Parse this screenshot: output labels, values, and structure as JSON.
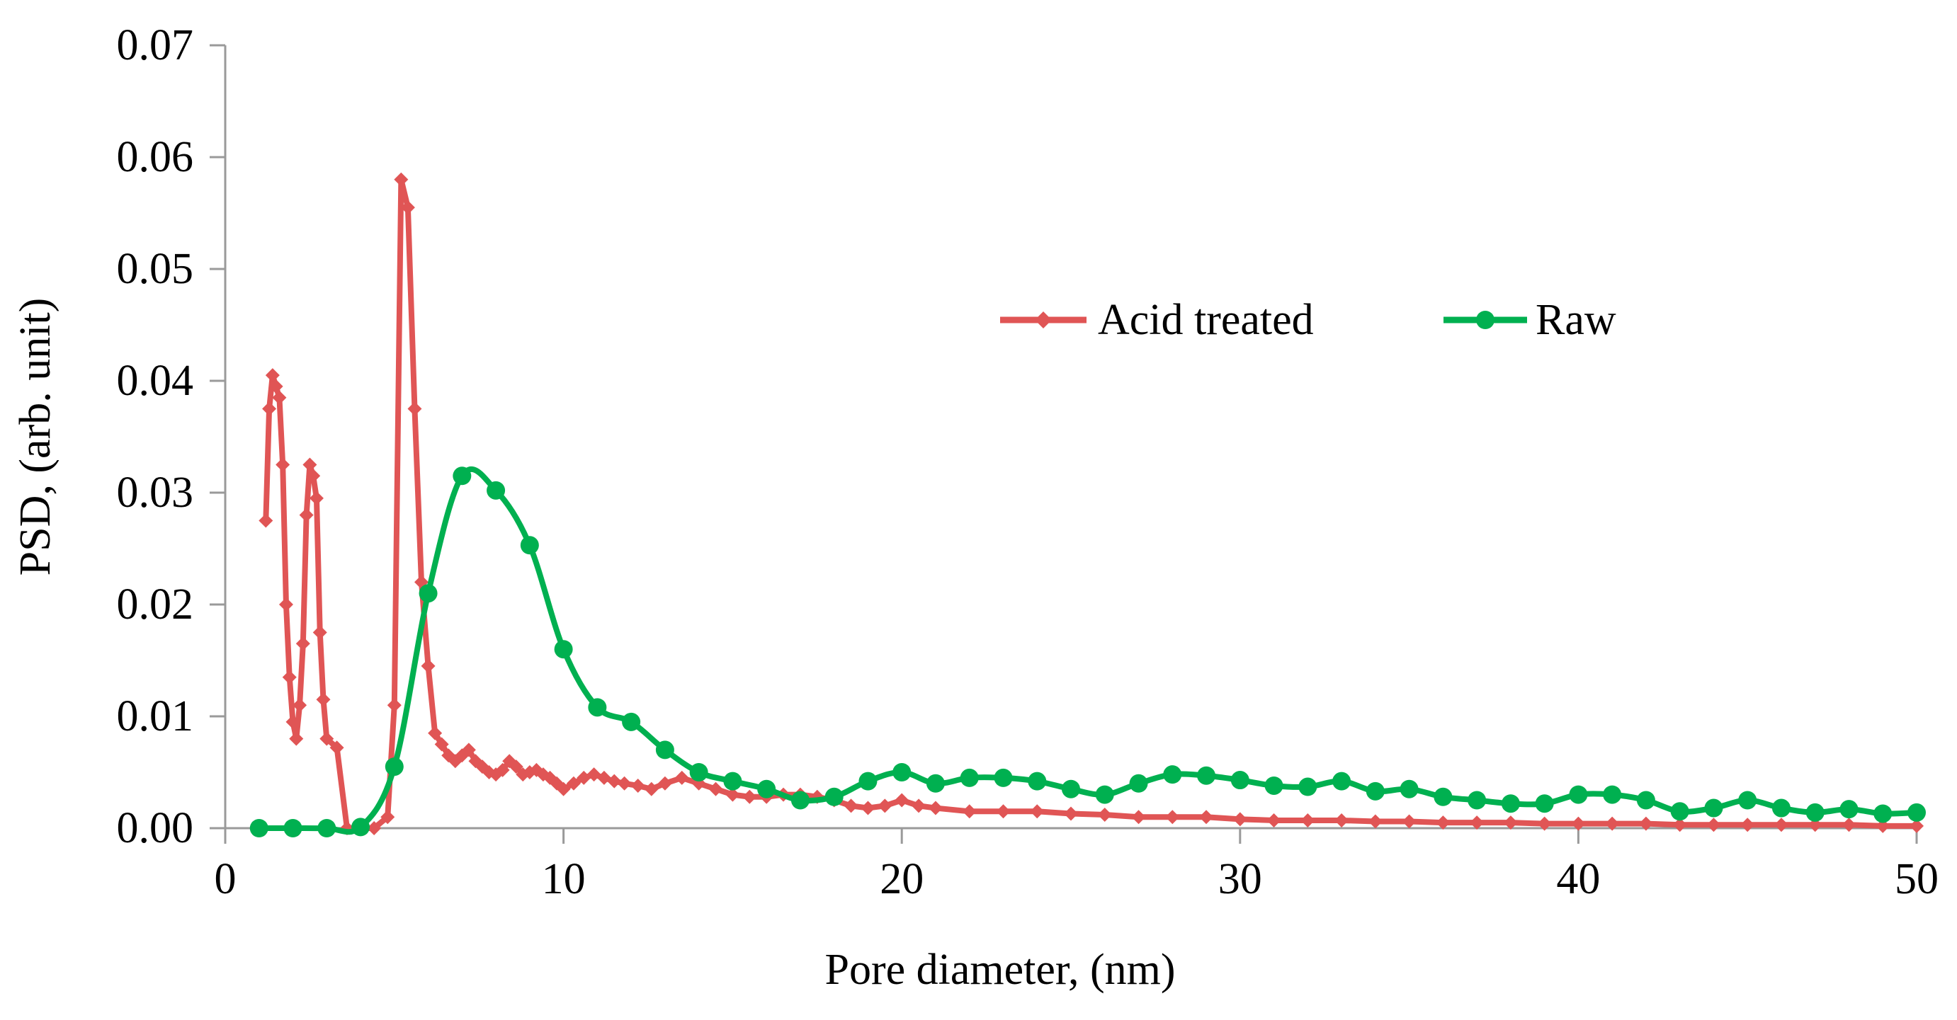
{
  "chart_data": {
    "type": "line",
    "title": "",
    "xlabel": "Pore diameter, (nm)",
    "ylabel": "PSD, (arb. unit)",
    "xlim": [
      0,
      50
    ],
    "ylim": [
      0,
      0.07
    ],
    "x_ticks": [
      0,
      10,
      20,
      30,
      40,
      50
    ],
    "x_tick_labels": [
      "0",
      "10",
      "20",
      "30",
      "40",
      "50"
    ],
    "y_ticks": [
      0,
      0.01,
      0.02,
      0.03,
      0.04,
      0.05,
      0.06,
      0.07
    ],
    "y_tick_labels": [
      "0.00",
      "0.01",
      "0.02",
      "0.03",
      "0.04",
      "0.05",
      "0.06",
      "0.07"
    ],
    "grid": false,
    "legend_position": "top-right",
    "series": [
      {
        "name": "Acid treated",
        "color": "#E05555",
        "marker": "diamond",
        "smooth": false,
        "x": [
          1.2,
          1.3,
          1.4,
          1.5,
          1.6,
          1.7,
          1.8,
          1.9,
          2.0,
          2.1,
          2.2,
          2.3,
          2.4,
          2.5,
          2.6,
          2.7,
          2.8,
          2.9,
          3.0,
          3.3,
          3.6,
          4.0,
          4.4,
          4.8,
          5.0,
          5.2,
          5.4,
          5.6,
          5.8,
          6.0,
          6.2,
          6.4,
          6.6,
          6.8,
          7.0,
          7.2,
          7.4,
          7.6,
          7.8,
          8.0,
          8.2,
          8.4,
          8.6,
          8.8,
          9.0,
          9.2,
          9.4,
          9.6,
          9.8,
          10.0,
          10.3,
          10.6,
          10.9,
          11.2,
          11.5,
          11.8,
          12.2,
          12.6,
          13.0,
          13.5,
          14.0,
          14.5,
          15.0,
          15.5,
          16.0,
          16.5,
          17.0,
          17.5,
          18.0,
          18.5,
          19.0,
          19.5,
          20.0,
          20.5,
          21.0,
          22.0,
          23.0,
          24.0,
          25.0,
          26.0,
          27.0,
          28.0,
          29.0,
          30.0,
          31.0,
          32.0,
          33.0,
          34.0,
          35.0,
          36.0,
          37.0,
          38.0,
          39.0,
          40.0,
          41.0,
          42.0,
          43.0,
          44.0,
          45.0,
          46.0,
          47.0,
          48.0,
          49.0,
          50.0
        ],
        "values": [
          0.0275,
          0.0375,
          0.0405,
          0.0395,
          0.0385,
          0.0325,
          0.02,
          0.0135,
          0.0095,
          0.008,
          0.011,
          0.0165,
          0.028,
          0.0325,
          0.0315,
          0.0295,
          0.0175,
          0.0115,
          0.008,
          0.0072,
          0.0,
          0.0,
          0.0,
          0.001,
          0.011,
          0.058,
          0.0555,
          0.0375,
          0.022,
          0.0145,
          0.0085,
          0.0075,
          0.0065,
          0.006,
          0.0065,
          0.007,
          0.006,
          0.0055,
          0.005,
          0.0048,
          0.0052,
          0.006,
          0.0055,
          0.0048,
          0.005,
          0.0052,
          0.0048,
          0.0045,
          0.004,
          0.0035,
          0.004,
          0.0045,
          0.0048,
          0.0045,
          0.0042,
          0.004,
          0.0038,
          0.0035,
          0.004,
          0.0045,
          0.004,
          0.0035,
          0.003,
          0.0028,
          0.0028,
          0.003,
          0.003,
          0.0028,
          0.0025,
          0.002,
          0.0018,
          0.002,
          0.0025,
          0.002,
          0.0018,
          0.0015,
          0.0015,
          0.0015,
          0.0013,
          0.0012,
          0.001,
          0.001,
          0.001,
          0.0008,
          0.0007,
          0.0007,
          0.0007,
          0.0006,
          0.0006,
          0.0005,
          0.0005,
          0.0005,
          0.0004,
          0.0004,
          0.0004,
          0.0004,
          0.0003,
          0.0003,
          0.0003,
          0.0003,
          0.0003,
          0.0003,
          0.0002,
          0.0002
        ]
      },
      {
        "name": "Raw",
        "color": "#00B050",
        "marker": "circle",
        "smooth": true,
        "x": [
          1,
          2,
          3,
          4,
          5,
          6,
          7,
          8,
          9,
          10,
          11,
          12,
          13,
          14,
          15,
          16,
          17,
          18,
          19,
          20,
          21,
          22,
          23,
          24,
          25,
          26,
          27,
          28,
          29,
          30,
          31,
          32,
          33,
          34,
          35,
          36,
          37,
          38,
          39,
          40,
          41,
          42,
          43,
          44,
          45,
          46,
          47,
          48,
          49,
          50
        ],
        "values": [
          0.0,
          0.0,
          0.0,
          0.0001,
          0.0055,
          0.021,
          0.0315,
          0.0302,
          0.0253,
          0.016,
          0.0108,
          0.0095,
          0.007,
          0.005,
          0.0042,
          0.0035,
          0.0025,
          0.0028,
          0.0042,
          0.005,
          0.004,
          0.0045,
          0.0045,
          0.0042,
          0.0035,
          0.003,
          0.004,
          0.0048,
          0.0047,
          0.0043,
          0.0038,
          0.0037,
          0.0042,
          0.0033,
          0.0035,
          0.0028,
          0.0025,
          0.0022,
          0.0022,
          0.003,
          0.003,
          0.0025,
          0.0015,
          0.0018,
          0.0025,
          0.0018,
          0.0014,
          0.0017,
          0.0013,
          0.0014
        ]
      }
    ]
  }
}
